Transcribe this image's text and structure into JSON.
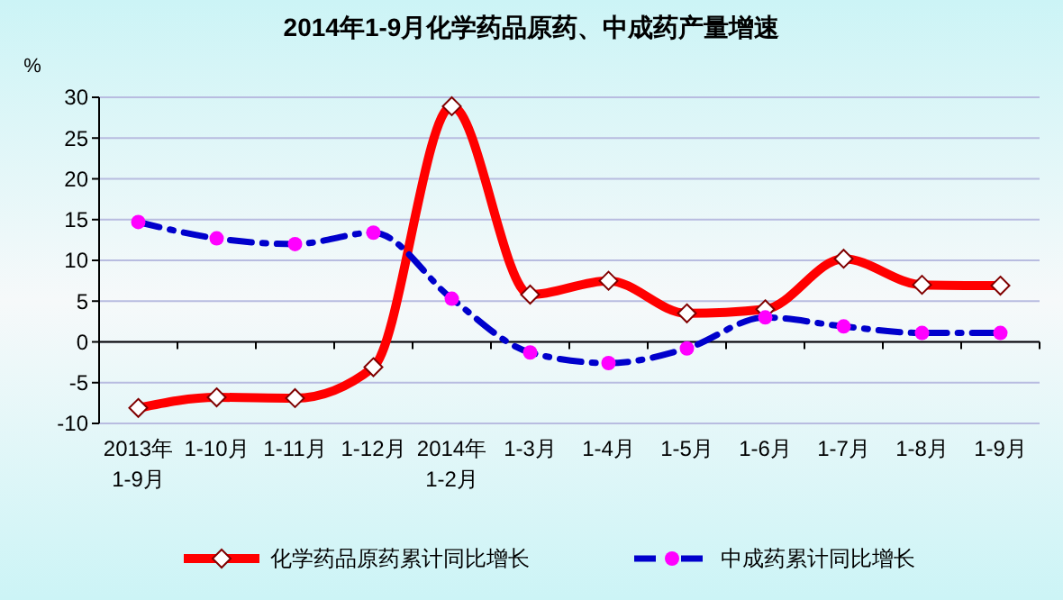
{
  "chart_data": {
    "type": "line",
    "title": "2014年1-9月化学药品原药、中成药产量增速",
    "ylabel": "%",
    "categories": [
      "2013年\n1-9月",
      "1-10月",
      "1-11月",
      "1-12月",
      "2014年\n1-2月",
      "1-3月",
      "1-4月",
      "1-5月",
      "1-6月",
      "1-7月",
      "1-8月",
      "1-9月"
    ],
    "series": [
      {
        "name": "化学药品原药累计同比增长",
        "color": "#ff0000",
        "marker": "diamond",
        "line_style": "solid",
        "values": [
          -8.1,
          -6.8,
          -6.9,
          -3.1,
          28.9,
          5.8,
          7.5,
          3.5,
          4.0,
          10.2,
          7.0,
          6.9
        ]
      },
      {
        "name": "中成药累计同比增长",
        "color": "#0000cc",
        "marker": "circle",
        "line_style": "dashed",
        "values": [
          14.7,
          12.7,
          12.0,
          13.4,
          5.3,
          -1.3,
          -2.6,
          -0.8,
          3.0,
          1.9,
          1.1,
          1.1
        ]
      }
    ],
    "ylim": [
      -10,
      30
    ],
    "yticks": [
      -10,
      -5,
      0,
      5,
      10,
      15,
      20,
      25,
      30
    ],
    "grid": "y",
    "legend": "bottom"
  }
}
